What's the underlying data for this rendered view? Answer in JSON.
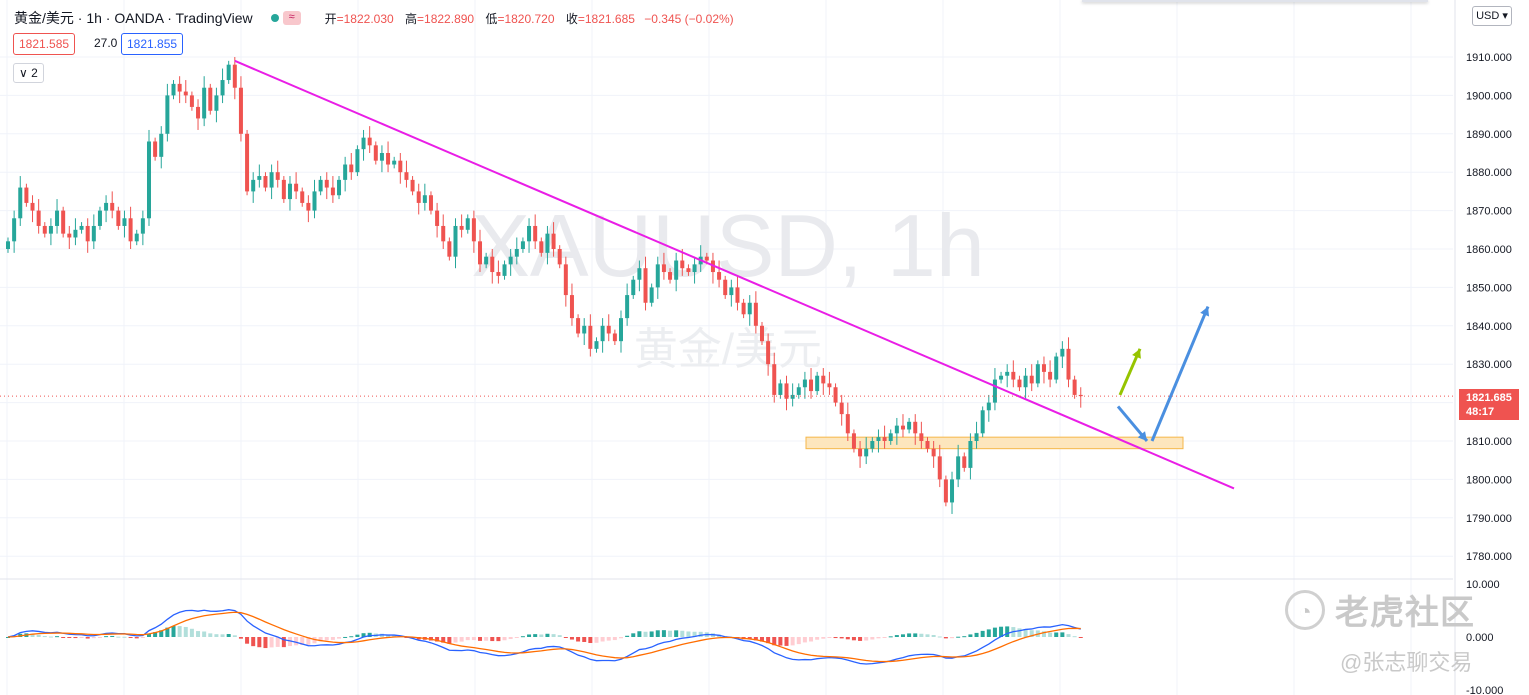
{
  "header": {
    "symbol": "黄金/美元 · 1h · OANDA · TradingView",
    "wave_icon": "≈",
    "ohlc": {
      "open_label": "开",
      "open": "=1822.030",
      "high_label": "高",
      "high": "=1822.890",
      "low_label": "低",
      "low": "=1820.720",
      "close_label": "收",
      "close": "=1821.685",
      "change": "−0.345 (−0.02%)"
    }
  },
  "quote": {
    "bid": "1821.585",
    "spread": "27.0",
    "ask": "1821.855"
  },
  "indicator_toggle": "∨ 2",
  "currency_button": "USD ▾",
  "watermark": {
    "symbol": "XAUUSD, 1h",
    "name": "黄金/美元"
  },
  "last_price": {
    "price": "1821.685",
    "countdown": "48:17"
  },
  "brand_watermark": {
    "logo_text": "老虎社区",
    "author": "@张志聊交易"
  },
  "colors": {
    "up": "#26a69a",
    "down": "#ef5350",
    "trendline": "#e91ee6",
    "zone": "#fde6bd",
    "macd": "#2962ff",
    "signal": "#ff6d00"
  },
  "chart_data": {
    "type": "candlestick",
    "y_axis": [
      "1910.000",
      "1900.000",
      "1890.000",
      "1880.000",
      "1870.000",
      "1860.000",
      "1850.000",
      "1840.000",
      "1830.000",
      "1820.000",
      "1810.000",
      "1800.000",
      "1790.000",
      "1780.000"
    ],
    "y_axis_values": [
      1910,
      1900,
      1890,
      1880,
      1870,
      1860,
      1850,
      1840,
      1830,
      1820,
      1810,
      1800,
      1790,
      1780
    ],
    "macd_axis": [
      "10.000",
      "0.000",
      "-10.000"
    ],
    "macd_axis_values": [
      10,
      0,
      -10
    ],
    "closes": [
      1862,
      1868,
      1876,
      1872,
      1870,
      1866,
      1864,
      1866,
      1870,
      1864,
      1863,
      1865,
      1866,
      1862,
      1866,
      1870,
      1872,
      1870,
      1866,
      1868,
      1862,
      1864,
      1868,
      1888,
      1884,
      1890,
      1900,
      1903,
      1901,
      1900,
      1897,
      1894,
      1902,
      1896,
      1900,
      1904,
      1908,
      1902,
      1890,
      1875,
      1878,
      1879,
      1876,
      1880,
      1878,
      1873,
      1877,
      1875,
      1872,
      1870,
      1875,
      1878,
      1876,
      1874,
      1878,
      1882,
      1880,
      1886,
      1889,
      1887,
      1883,
      1885,
      1882,
      1883,
      1880,
      1878,
      1875,
      1872,
      1874,
      1870,
      1866,
      1862,
      1858,
      1866,
      1865,
      1868,
      1862,
      1856,
      1858,
      1854,
      1853,
      1856,
      1858,
      1860,
      1862,
      1866,
      1862,
      1859,
      1864,
      1860,
      1856,
      1848,
      1842,
      1838,
      1840,
      1834,
      1836,
      1840,
      1838,
      1836,
      1842,
      1848,
      1852,
      1855,
      1846,
      1850,
      1856,
      1854,
      1852,
      1857,
      1855,
      1854,
      1856,
      1858,
      1857,
      1854,
      1852,
      1848,
      1850,
      1846,
      1843,
      1846,
      1840,
      1836,
      1830,
      1822,
      1825,
      1821,
      1822,
      1824,
      1826,
      1823,
      1827,
      1825,
      1824,
      1820,
      1817,
      1812,
      1808,
      1806,
      1808,
      1810,
      1811,
      1810,
      1812,
      1814,
      1813,
      1815,
      1812,
      1810,
      1808,
      1806,
      1800,
      1794,
      1800,
      1806,
      1803,
      1810,
      1812,
      1818,
      1820,
      1826,
      1827,
      1828,
      1826,
      1824,
      1827,
      1825,
      1830,
      1828,
      1826,
      1832,
      1834,
      1826,
      1822,
      1821.685
    ],
    "trendline": {
      "from": {
        "index": 37,
        "price": 1909
      },
      "to": {
        "index": 179,
        "price": 1812
      },
      "extend_to_price": 1806
    },
    "support_zone": {
      "low": 1808,
      "high": 1811
    },
    "projection_arrows": [
      {
        "color": "#96c400",
        "from_price": 1822,
        "to_price": 1834
      },
      {
        "color": "#4a8fe0",
        "from_price": 1819,
        "to_price": 1810
      },
      {
        "color": "#4a8fe0",
        "from_price": 1810,
        "to_price": 1845
      }
    ]
  }
}
